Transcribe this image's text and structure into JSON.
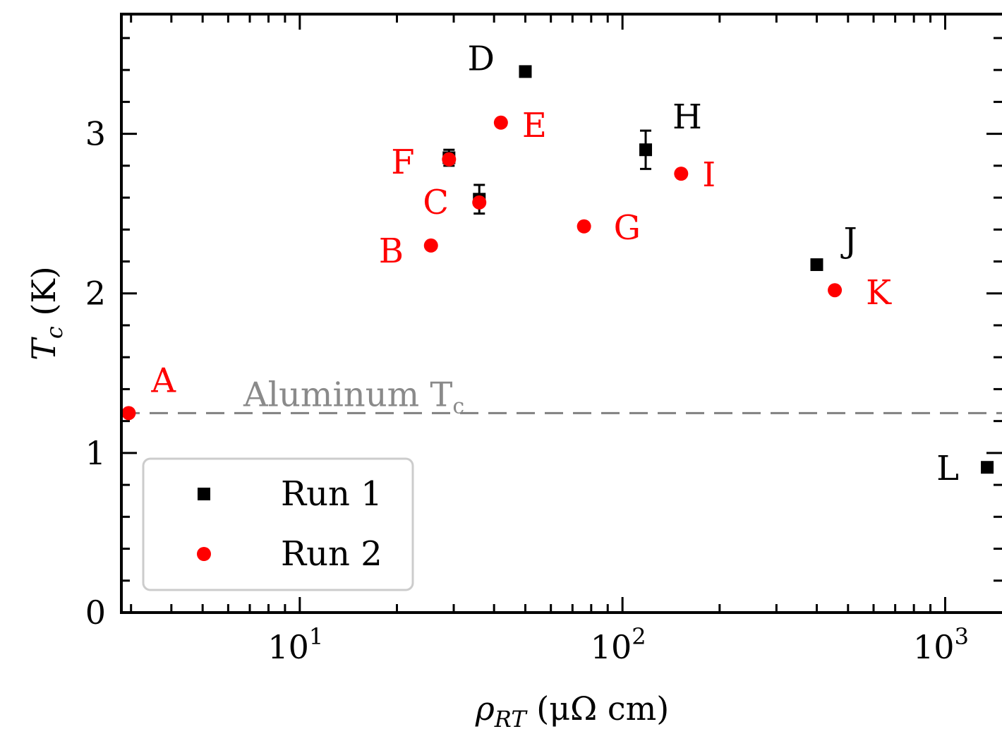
{
  "chart_data": {
    "type": "scatter",
    "x_scale": "log",
    "xlim": [
      2.8,
      1500
    ],
    "ylim": [
      0,
      3.75
    ],
    "x_major_ticks": [
      10,
      100,
      1000
    ],
    "x_tick_labels": [
      "10",
      "10",
      "10"
    ],
    "x_tick_exponents": [
      "1",
      "2",
      "3"
    ],
    "y_ticks": [
      0,
      1,
      2,
      3
    ],
    "y_tick_labels": [
      "0",
      "1",
      "2",
      "3"
    ],
    "xlabel_parts": [
      "ρ",
      "RT",
      " (μΩ cm)"
    ],
    "ylabel_parts": [
      "T",
      "c",
      " (K)"
    ],
    "grid": false,
    "legend_position": "lower-left",
    "reference_line": {
      "y": 1.25,
      "label": "Aluminum T",
      "label_subscript": "c",
      "color": "#808080",
      "style": "dashed"
    },
    "series": [
      {
        "name": "Run 1",
        "marker": "square",
        "color": "#000000",
        "points": [
          {
            "label": "D",
            "x": 50,
            "y": 3.39,
            "err": 0
          },
          {
            "label": "F",
            "x": 29,
            "y": 2.85,
            "err": 0.05
          },
          {
            "label": "C",
            "x": 36,
            "y": 2.59,
            "err": 0.09
          },
          {
            "label": "H",
            "x": 118,
            "y": 2.9,
            "err": 0.12
          },
          {
            "label": "J",
            "x": 400,
            "y": 2.18,
            "err": 0
          },
          {
            "label": "L",
            "x": 1350,
            "y": 0.91,
            "err": 0
          }
        ]
      },
      {
        "name": "Run 2",
        "marker": "circle",
        "color": "#ff0000",
        "points": [
          {
            "label": "A",
            "x": 2.95,
            "y": 1.25
          },
          {
            "label": "B",
            "x": 25.5,
            "y": 2.3
          },
          {
            "label": "C",
            "x": 36,
            "y": 2.57
          },
          {
            "label": "E",
            "x": 42,
            "y": 3.07
          },
          {
            "label": "F",
            "x": 29,
            "y": 2.84
          },
          {
            "label": "G",
            "x": 76,
            "y": 2.42
          },
          {
            "label": "I",
            "x": 152,
            "y": 2.75
          },
          {
            "label": "K",
            "x": 455,
            "y": 2.02
          }
        ]
      }
    ]
  }
}
